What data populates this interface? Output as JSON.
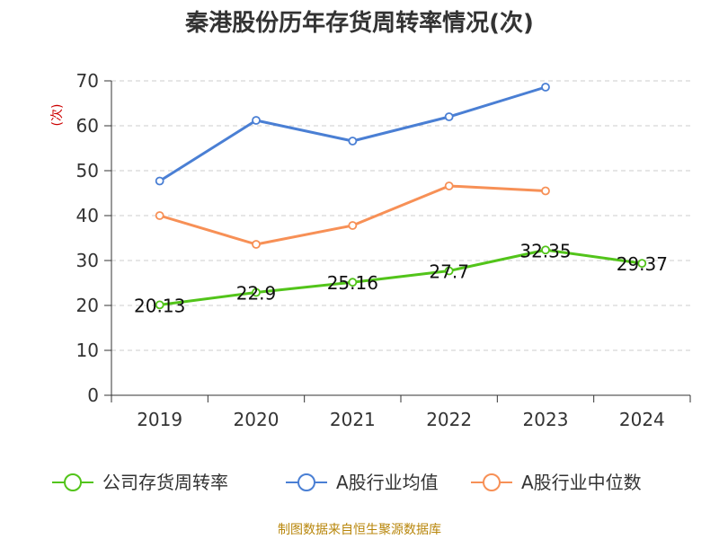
{
  "chart_data": {
    "type": "line",
    "title": "秦港股份历年存货周转率情况(次)",
    "ylabel": "(次)",
    "xlabel": "",
    "categories": [
      "2019",
      "2020",
      "2021",
      "2022",
      "2023",
      "2024"
    ],
    "ylim": [
      0,
      70
    ],
    "yticks": [
      0,
      10,
      20,
      30,
      40,
      50,
      60,
      70
    ],
    "grid": true,
    "legend_position": "bottom",
    "series": [
      {
        "name": "公司存货周转率",
        "color": "#52c41a",
        "values": [
          20.13,
          22.9,
          25.16,
          27.7,
          32.35,
          29.37
        ],
        "labels": [
          "20.13",
          "22.9",
          "25.16",
          "27.7",
          "32.35",
          "29.37"
        ]
      },
      {
        "name": "A股行业均值",
        "color": "#4a7fd4",
        "values": [
          47.7,
          61.2,
          56.6,
          62.0,
          68.6,
          null
        ]
      },
      {
        "name": "A股行业中位数",
        "color": "#f79056",
        "values": [
          40.0,
          33.6,
          37.8,
          46.6,
          45.5,
          null
        ]
      }
    ],
    "source": "制图数据来自恒生聚源数据库"
  }
}
